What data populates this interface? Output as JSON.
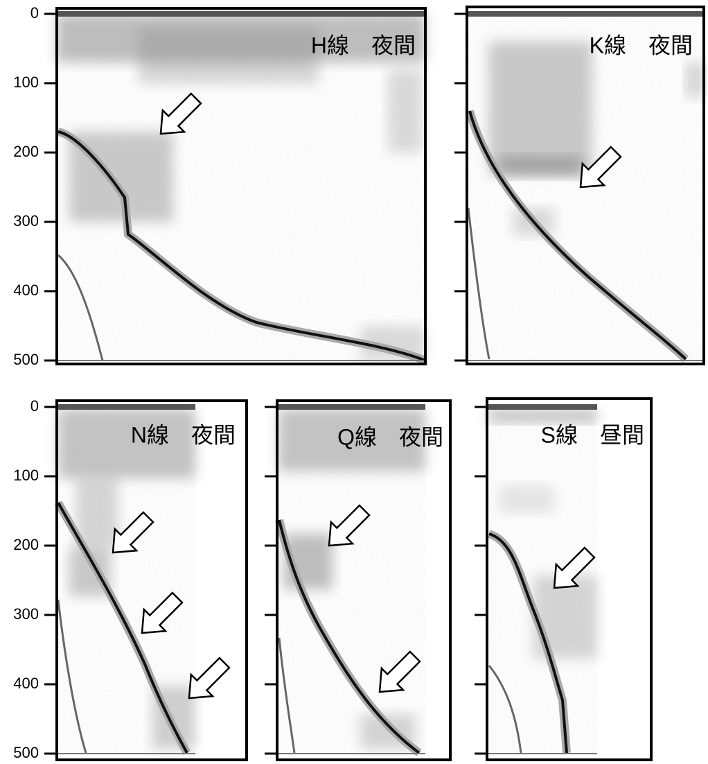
{
  "depth_axis": {
    "ylim": [
      0,
      500
    ],
    "ticks": [
      0,
      100,
      200,
      300,
      400,
      500
    ]
  },
  "panels": [
    {
      "title": "H線　夜間"
    },
    {
      "title": "K線　夜間"
    },
    {
      "title": "N線　夜間"
    },
    {
      "title": "Q線　夜間"
    },
    {
      "title": "S線　昼間"
    }
  ]
}
